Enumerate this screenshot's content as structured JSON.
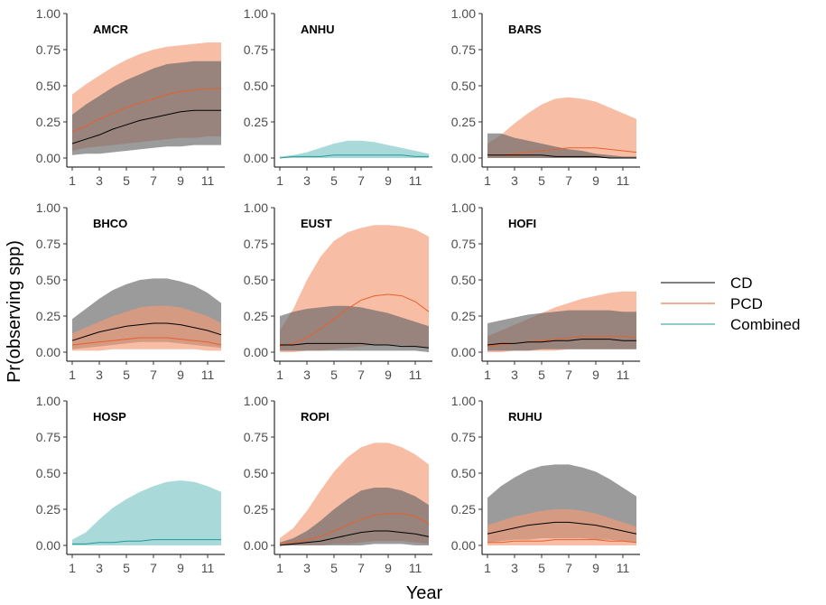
{
  "chart_data": {
    "type": "area",
    "facets": "3x3",
    "xlabel": "Year",
    "ylabel": "Pr(observing spp)",
    "xlim": [
      1,
      12
    ],
    "ylim": [
      0,
      1
    ],
    "x_ticks": [
      "1",
      "3",
      "5",
      "7",
      "9",
      "11"
    ],
    "y_ticks": [
      "0.00",
      "0.25",
      "0.50",
      "0.75",
      "1.00"
    ],
    "x": [
      1,
      2,
      3,
      4,
      5,
      6,
      7,
      8,
      9,
      10,
      11,
      12
    ],
    "legend": {
      "position": "right",
      "entries": [
        {
          "label": "CD",
          "line": "#000000",
          "band": "#666666"
        },
        {
          "label": "PCD",
          "line": "#e8602c",
          "band": "#f29a74"
        },
        {
          "label": "Combined",
          "line": "#1f9a9a",
          "band": "#7cc4c4"
        }
      ]
    },
    "panels": [
      {
        "title": "AMCR",
        "series": [
          {
            "name": "PCD",
            "mean": [
              0.18,
              0.22,
              0.27,
              0.31,
              0.35,
              0.38,
              0.41,
              0.44,
              0.46,
              0.47,
              0.48,
              0.48
            ],
            "lower": [
              0.05,
              0.07,
              0.08,
              0.09,
              0.1,
              0.11,
              0.12,
              0.13,
              0.14,
              0.14,
              0.15,
              0.15
            ],
            "upper": [
              0.44,
              0.51,
              0.57,
              0.63,
              0.68,
              0.72,
              0.75,
              0.77,
              0.78,
              0.79,
              0.8,
              0.8
            ]
          },
          {
            "name": "CD",
            "mean": [
              0.1,
              0.13,
              0.16,
              0.2,
              0.23,
              0.26,
              0.28,
              0.3,
              0.32,
              0.33,
              0.33,
              0.33
            ],
            "lower": [
              0.02,
              0.03,
              0.03,
              0.04,
              0.05,
              0.06,
              0.07,
              0.08,
              0.08,
              0.09,
              0.09,
              0.09
            ],
            "upper": [
              0.3,
              0.37,
              0.43,
              0.49,
              0.54,
              0.58,
              0.62,
              0.65,
              0.66,
              0.67,
              0.67,
              0.67
            ]
          }
        ]
      },
      {
        "title": "ANHU",
        "series": [
          {
            "name": "Combined",
            "mean": [
              0.0,
              0.01,
              0.01,
              0.01,
              0.02,
              0.02,
              0.02,
              0.02,
              0.02,
              0.02,
              0.01,
              0.01
            ],
            "lower": [
              0.0,
              0.0,
              0.0,
              0.0,
              0.0,
              0.0,
              0.0,
              0.0,
              0.0,
              0.0,
              0.0,
              0.0
            ],
            "upper": [
              0.01,
              0.02,
              0.04,
              0.07,
              0.1,
              0.12,
              0.12,
              0.11,
              0.09,
              0.07,
              0.05,
              0.03
            ]
          }
        ]
      },
      {
        "title": "BARS",
        "series": [
          {
            "name": "PCD",
            "mean": [
              0.02,
              0.02,
              0.03,
              0.04,
              0.05,
              0.06,
              0.07,
              0.07,
              0.07,
              0.06,
              0.05,
              0.04
            ],
            "lower": [
              0.0,
              0.0,
              0.0,
              0.0,
              0.0,
              0.0,
              0.0,
              0.0,
              0.0,
              0.0,
              0.0,
              0.0
            ],
            "upper": [
              0.1,
              0.16,
              0.24,
              0.31,
              0.37,
              0.41,
              0.42,
              0.41,
              0.39,
              0.35,
              0.31,
              0.27
            ]
          },
          {
            "name": "CD",
            "mean": [
              0.02,
              0.02,
              0.02,
              0.02,
              0.02,
              0.01,
              0.01,
              0.01,
              0.01,
              0.0,
              0.0,
              0.0
            ],
            "lower": [
              0.0,
              0.0,
              0.0,
              0.0,
              0.0,
              0.0,
              0.0,
              0.0,
              0.0,
              0.0,
              0.0,
              0.0
            ],
            "upper": [
              0.17,
              0.17,
              0.14,
              0.12,
              0.1,
              0.08,
              0.06,
              0.05,
              0.03,
              0.02,
              0.01,
              0.01
            ]
          }
        ]
      },
      {
        "title": "BHCO",
        "series": [
          {
            "name": "CD",
            "mean": [
              0.08,
              0.11,
              0.14,
              0.16,
              0.18,
              0.19,
              0.2,
              0.2,
              0.19,
              0.17,
              0.15,
              0.12
            ],
            "lower": [
              0.02,
              0.03,
              0.04,
              0.05,
              0.06,
              0.07,
              0.07,
              0.07,
              0.06,
              0.05,
              0.04,
              0.03
            ],
            "upper": [
              0.23,
              0.3,
              0.37,
              0.43,
              0.47,
              0.5,
              0.51,
              0.51,
              0.49,
              0.46,
              0.41,
              0.34
            ]
          },
          {
            "name": "PCD",
            "mean": [
              0.05,
              0.06,
              0.07,
              0.08,
              0.09,
              0.1,
              0.1,
              0.1,
              0.09,
              0.08,
              0.07,
              0.05
            ],
            "lower": [
              0.01,
              0.01,
              0.01,
              0.02,
              0.02,
              0.02,
              0.02,
              0.02,
              0.02,
              0.02,
              0.01,
              0.01
            ],
            "upper": [
              0.13,
              0.17,
              0.21,
              0.25,
              0.28,
              0.31,
              0.32,
              0.32,
              0.31,
              0.28,
              0.25,
              0.2
            ]
          }
        ]
      },
      {
        "title": "EUST",
        "series": [
          {
            "name": "PCD",
            "mean": [
              0.04,
              0.06,
              0.1,
              0.16,
              0.23,
              0.3,
              0.36,
              0.39,
              0.4,
              0.39,
              0.35,
              0.28
            ],
            "lower": [
              0.0,
              0.0,
              0.01,
              0.01,
              0.02,
              0.03,
              0.04,
              0.05,
              0.05,
              0.05,
              0.04,
              0.03
            ],
            "upper": [
              0.15,
              0.3,
              0.5,
              0.66,
              0.77,
              0.83,
              0.86,
              0.88,
              0.88,
              0.87,
              0.85,
              0.8
            ]
          },
          {
            "name": "CD",
            "mean": [
              0.05,
              0.05,
              0.06,
              0.06,
              0.06,
              0.06,
              0.06,
              0.05,
              0.05,
              0.04,
              0.04,
              0.03
            ],
            "lower": [
              0.01,
              0.01,
              0.01,
              0.01,
              0.01,
              0.01,
              0.01,
              0.01,
              0.01,
              0.01,
              0.01,
              0.0
            ],
            "upper": [
              0.25,
              0.28,
              0.3,
              0.31,
              0.32,
              0.32,
              0.31,
              0.29,
              0.27,
              0.24,
              0.21,
              0.18
            ]
          }
        ]
      },
      {
        "title": "HOFI",
        "series": [
          {
            "name": "PCD",
            "mean": [
              0.04,
              0.05,
              0.06,
              0.07,
              0.08,
              0.09,
              0.1,
              0.11,
              0.11,
              0.11,
              0.11,
              0.1
            ],
            "lower": [
              0.0,
              0.0,
              0.01,
              0.01,
              0.01,
              0.01,
              0.02,
              0.02,
              0.02,
              0.02,
              0.02,
              0.02
            ],
            "upper": [
              0.11,
              0.15,
              0.19,
              0.23,
              0.27,
              0.31,
              0.34,
              0.37,
              0.39,
              0.41,
              0.42,
              0.42
            ]
          },
          {
            "name": "CD",
            "mean": [
              0.05,
              0.06,
              0.06,
              0.07,
              0.07,
              0.08,
              0.08,
              0.09,
              0.09,
              0.09,
              0.08,
              0.08
            ],
            "lower": [
              0.01,
              0.01,
              0.01,
              0.01,
              0.02,
              0.02,
              0.02,
              0.02,
              0.02,
              0.02,
              0.02,
              0.02
            ],
            "upper": [
              0.2,
              0.22,
              0.24,
              0.26,
              0.27,
              0.28,
              0.29,
              0.29,
              0.29,
              0.29,
              0.28,
              0.28
            ]
          }
        ]
      },
      {
        "title": "HOSP",
        "series": [
          {
            "name": "Combined",
            "mean": [
              0.01,
              0.01,
              0.02,
              0.02,
              0.03,
              0.03,
              0.04,
              0.04,
              0.04,
              0.04,
              0.04,
              0.04
            ],
            "lower": [
              0.0,
              0.0,
              0.0,
              0.0,
              0.0,
              0.0,
              0.0,
              0.0,
              0.0,
              0.0,
              0.0,
              0.0
            ],
            "upper": [
              0.04,
              0.09,
              0.18,
              0.26,
              0.32,
              0.37,
              0.41,
              0.44,
              0.45,
              0.44,
              0.41,
              0.37
            ]
          }
        ]
      },
      {
        "title": "ROPI",
        "series": [
          {
            "name": "PCD",
            "mean": [
              0.01,
              0.02,
              0.04,
              0.06,
              0.1,
              0.14,
              0.18,
              0.21,
              0.22,
              0.22,
              0.2,
              0.15
            ],
            "lower": [
              0.0,
              0.0,
              0.0,
              0.0,
              0.01,
              0.01,
              0.02,
              0.03,
              0.03,
              0.03,
              0.02,
              0.01
            ],
            "upper": [
              0.05,
              0.12,
              0.24,
              0.38,
              0.51,
              0.61,
              0.68,
              0.71,
              0.71,
              0.68,
              0.63,
              0.56
            ]
          },
          {
            "name": "CD",
            "mean": [
              0.0,
              0.01,
              0.02,
              0.03,
              0.05,
              0.07,
              0.09,
              0.1,
              0.1,
              0.09,
              0.08,
              0.06
            ],
            "lower": [
              0.0,
              0.0,
              0.0,
              0.0,
              0.0,
              0.0,
              0.0,
              0.01,
              0.01,
              0.01,
              0.0,
              0.0
            ],
            "upper": [
              0.02,
              0.05,
              0.1,
              0.17,
              0.25,
              0.32,
              0.38,
              0.4,
              0.4,
              0.38,
              0.34,
              0.28
            ]
          }
        ]
      },
      {
        "title": "RUHU",
        "series": [
          {
            "name": "CD",
            "mean": [
              0.08,
              0.1,
              0.12,
              0.14,
              0.15,
              0.16,
              0.16,
              0.15,
              0.14,
              0.12,
              0.1,
              0.08
            ],
            "lower": [
              0.02,
              0.03,
              0.04,
              0.04,
              0.05,
              0.05,
              0.05,
              0.05,
              0.04,
              0.04,
              0.03,
              0.02
            ],
            "upper": [
              0.33,
              0.41,
              0.47,
              0.52,
              0.55,
              0.56,
              0.56,
              0.54,
              0.51,
              0.46,
              0.4,
              0.34
            ]
          },
          {
            "name": "PCD",
            "mean": [
              0.02,
              0.02,
              0.03,
              0.03,
              0.03,
              0.04,
              0.04,
              0.04,
              0.04,
              0.03,
              0.03,
              0.02
            ],
            "lower": [
              0.0,
              0.0,
              0.0,
              0.0,
              0.0,
              0.0,
              0.0,
              0.0,
              0.0,
              0.0,
              0.0,
              0.0
            ],
            "upper": [
              0.14,
              0.17,
              0.2,
              0.22,
              0.24,
              0.25,
              0.25,
              0.24,
              0.22,
              0.19,
              0.16,
              0.13
            ]
          }
        ]
      }
    ]
  }
}
